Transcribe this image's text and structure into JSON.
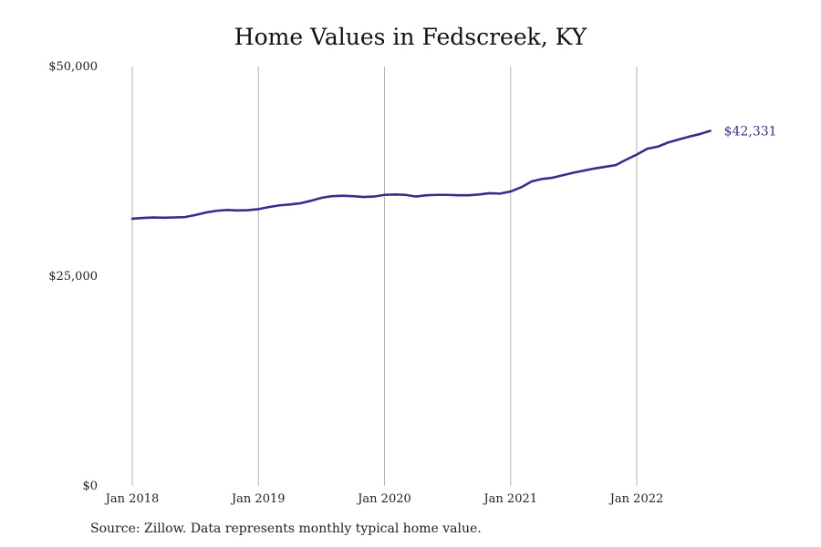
{
  "chart_data": {
    "type": "line",
    "title": "Home Values in Fedscreek, KY",
    "xlabel": "",
    "ylabel": "",
    "y_ticks": [
      "$0",
      "$25,000",
      "$50,000"
    ],
    "y_tick_values": [
      0,
      25000,
      50000
    ],
    "ylim": [
      0,
      50000
    ],
    "x_ticks": [
      "Jan 2018",
      "Jan 2019",
      "Jan 2020",
      "Jan 2021",
      "Jan 2022"
    ],
    "x_tick_values": [
      "2018-01",
      "2019-01",
      "2020-01",
      "2021-01",
      "2022-01"
    ],
    "grid": "vertical",
    "line_color": "#342f8c",
    "end_label": "$42,331",
    "series": [
      {
        "x": [
          "2018-01",
          "2018-02",
          "2018-03",
          "2018-04",
          "2018-05",
          "2018-06",
          "2018-07",
          "2018-08",
          "2018-09",
          "2018-10",
          "2018-11",
          "2018-12",
          "2019-01",
          "2019-02",
          "2019-03",
          "2019-04",
          "2019-05",
          "2019-06",
          "2019-07",
          "2019-08",
          "2019-09",
          "2019-10",
          "2019-11",
          "2019-12",
          "2020-01",
          "2020-02",
          "2020-03",
          "2020-04",
          "2020-05",
          "2020-06",
          "2020-07",
          "2020-08",
          "2020-09",
          "2020-10",
          "2020-11",
          "2020-12",
          "2021-01",
          "2021-02",
          "2021-03",
          "2021-04",
          "2021-05",
          "2021-06",
          "2021-07",
          "2021-08",
          "2021-09",
          "2021-10",
          "2021-11",
          "2021-12",
          "2022-01",
          "2022-02",
          "2022-03",
          "2022-04",
          "2022-05",
          "2022-06",
          "2022-07",
          "2022-08"
        ],
        "values": [
          31850,
          31950,
          32000,
          31980,
          32010,
          32050,
          32300,
          32600,
          32800,
          32900,
          32850,
          32870,
          33000,
          33250,
          33450,
          33550,
          33700,
          34000,
          34350,
          34550,
          34600,
          34550,
          34450,
          34500,
          34700,
          34750,
          34700,
          34500,
          34650,
          34700,
          34700,
          34650,
          34650,
          34750,
          34900,
          34850,
          35100,
          35600,
          36300,
          36600,
          36750,
          37050,
          37350,
          37600,
          37850,
          38050,
          38250,
          38900,
          39500,
          40200,
          40450,
          40950,
          41300,
          41650,
          41950,
          42331
        ]
      }
    ]
  },
  "source_note": "Source: Zillow. Data represents monthly typical home value."
}
